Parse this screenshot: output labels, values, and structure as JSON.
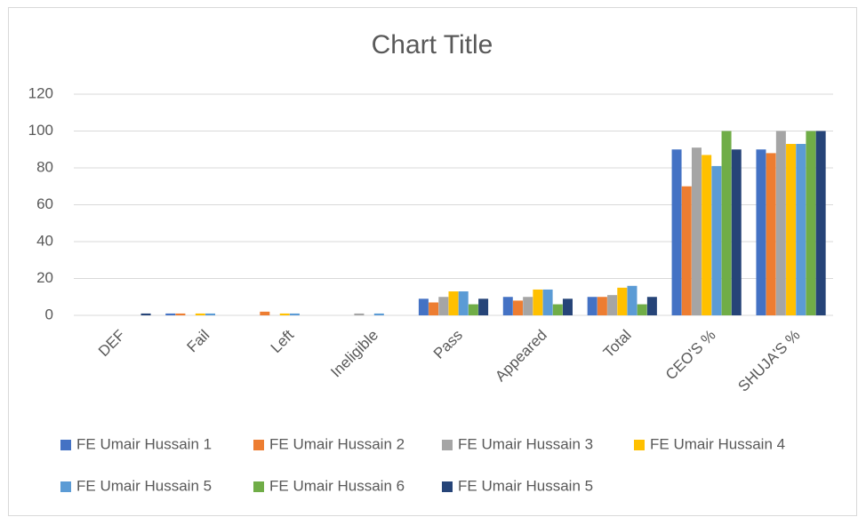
{
  "chart_data": {
    "type": "bar",
    "title": "Chart Title",
    "categories": [
      "DEF",
      "Fail",
      "Left",
      "Ineligible",
      "Pass",
      "Appeared",
      "Total",
      "CEO'S %",
      "SHUJA'S %"
    ],
    "series": [
      {
        "name": "FE Umair Hussain 1",
        "color": "#4472c4",
        "values": [
          0,
          1,
          0,
          0,
          9,
          10,
          10,
          90,
          90
        ]
      },
      {
        "name": "FE Umair Hussain 2",
        "color": "#ed7d31",
        "values": [
          0,
          1,
          2,
          0,
          7,
          8,
          10,
          70,
          88
        ]
      },
      {
        "name": "FE Umair Hussain 3",
        "color": "#a5a5a5",
        "values": [
          0,
          0,
          0,
          1,
          10,
          10,
          11,
          91,
          100
        ]
      },
      {
        "name": "FE Umair Hussain 4",
        "color": "#ffc000",
        "values": [
          0,
          1,
          1,
          0,
          13,
          14,
          15,
          87,
          93
        ]
      },
      {
        "name": "FE Umair Hussain 5",
        "color": "#5b9bd5",
        "values": [
          0,
          1,
          1,
          1,
          13,
          14,
          16,
          81,
          93
        ]
      },
      {
        "name": "FE Umair Hussain 6",
        "color": "#70ad47",
        "values": [
          0,
          0,
          0,
          0,
          6,
          6,
          6,
          100,
          100
        ]
      },
      {
        "name": "FE Umair Hussain 5",
        "color": "#264478",
        "values": [
          1,
          0,
          0,
          0,
          9,
          9,
          10,
          90,
          100
        ]
      }
    ],
    "ylim": [
      0,
      120
    ],
    "yticks": [
      0,
      20,
      40,
      60,
      80,
      100,
      120
    ],
    "grid": true,
    "legend": "bottom"
  }
}
